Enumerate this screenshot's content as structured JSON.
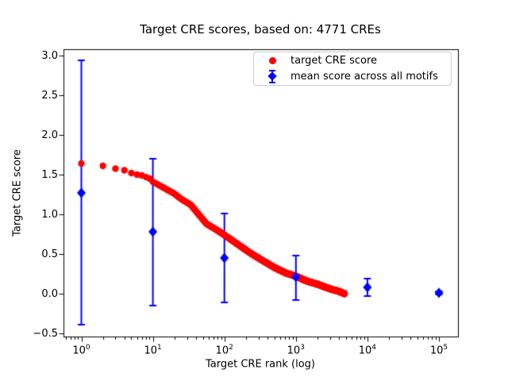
{
  "chart_data": {
    "type": "scatter",
    "title": "Target CRE scores, based on: 4771 CREs",
    "xlabel": "Target CRE rank (log)",
    "ylabel": "Target CRE score",
    "x_scale": "log10",
    "grid": false,
    "legend_position": "upper right",
    "xlim_log10": [
      -0.25,
      5.27
    ],
    "ylim": [
      -0.55,
      3.08
    ],
    "x_ticks_log10": [
      0,
      1,
      2,
      3,
      4,
      5
    ],
    "y_ticks": [
      3.0,
      2.5,
      2.0,
      1.5,
      1.0,
      0.5,
      0.0,
      -0.5
    ],
    "colors": {
      "target_series": "#ff0000",
      "mean_series": "#0000ff"
    },
    "series": [
      {
        "name": "target CRE score",
        "type": "scatter",
        "marker": "circle",
        "color": "#ff0000",
        "n_points": 4771,
        "score_profile_log10rank_vs_score": [
          [
            0.0,
            1.64
          ],
          [
            0.301,
            1.61
          ],
          [
            0.477,
            1.575
          ],
          [
            0.602,
            1.555
          ],
          [
            0.699,
            1.52
          ],
          [
            0.778,
            1.5
          ],
          [
            0.845,
            1.49
          ],
          [
            0.954,
            1.45
          ],
          [
            1.0,
            1.41
          ],
          [
            1.08,
            1.37
          ],
          [
            1.2,
            1.31
          ],
          [
            1.3,
            1.26
          ],
          [
            1.4,
            1.19
          ],
          [
            1.53,
            1.12
          ],
          [
            1.62,
            1.02
          ],
          [
            1.75,
            0.88
          ],
          [
            1.9,
            0.8
          ],
          [
            2.0,
            0.74
          ],
          [
            2.19,
            0.62
          ],
          [
            2.35,
            0.52
          ],
          [
            2.53,
            0.42
          ],
          [
            2.7,
            0.33
          ],
          [
            2.86,
            0.26
          ],
          [
            3.0,
            0.22
          ],
          [
            3.15,
            0.16
          ],
          [
            3.3,
            0.12
          ],
          [
            3.48,
            0.06
          ],
          [
            3.6,
            0.03
          ],
          [
            3.679,
            0.0
          ]
        ]
      },
      {
        "name": "mean score across all motifs",
        "type": "errorbar",
        "marker": "diamond",
        "color": "#0000ff",
        "points": [
          {
            "rank": 1,
            "mean": 1.27,
            "lo": -0.39,
            "hi": 2.94
          },
          {
            "rank": 10,
            "mean": 0.78,
            "lo": -0.15,
            "hi": 1.7
          },
          {
            "rank": 100,
            "mean": 0.45,
            "lo": -0.11,
            "hi": 1.01
          },
          {
            "rank": 1000,
            "mean": 0.21,
            "lo": -0.08,
            "hi": 0.48
          },
          {
            "rank": 10000,
            "mean": 0.08,
            "lo": -0.03,
            "hi": 0.19
          },
          {
            "rank": 100000,
            "mean": 0.01,
            "lo": -0.01,
            "hi": 0.03
          }
        ]
      }
    ]
  }
}
